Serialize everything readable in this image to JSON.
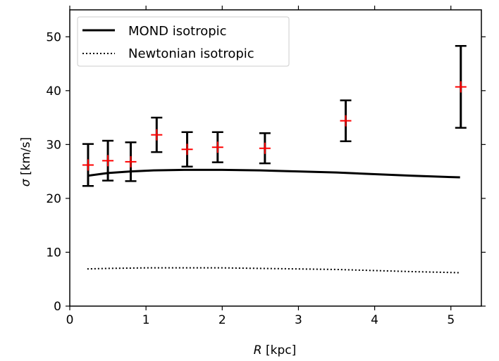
{
  "chart_data": {
    "type": "line",
    "xlabel": {
      "symbol": "R",
      "unit": " [kpc]"
    },
    "ylabel": {
      "symbol": "σ",
      "unit": " [km/s]"
    },
    "xlim": [
      0,
      5.4
    ],
    "ylim": [
      0,
      55
    ],
    "x_ticks": [
      0,
      1,
      2,
      3,
      4,
      5
    ],
    "y_ticks": [
      0,
      10,
      20,
      30,
      40,
      50
    ],
    "grid": false,
    "legend_position": "top-left",
    "series": [
      {
        "name": "MOND isotropic",
        "style": "solid",
        "color": "#000000",
        "x": [
          0.23,
          0.5,
          0.8,
          1.1,
          1.5,
          2.0,
          2.5,
          3.0,
          3.5,
          4.0,
          4.5,
          5.12
        ],
        "y": [
          24.2,
          24.7,
          25.0,
          25.2,
          25.3,
          25.3,
          25.2,
          25.0,
          24.8,
          24.5,
          24.2,
          23.9
        ]
      },
      {
        "name": "Newtonian isotropic",
        "style": "dotted",
        "color": "#000000",
        "x": [
          0.23,
          0.5,
          1.0,
          1.5,
          2.0,
          2.5,
          3.0,
          3.5,
          4.0,
          4.5,
          5.12
        ],
        "y": [
          6.9,
          7.0,
          7.1,
          7.1,
          7.1,
          7.0,
          6.9,
          6.8,
          6.6,
          6.4,
          6.2
        ]
      }
    ],
    "observations": {
      "marker": "+",
      "marker_color": "#ff0000",
      "errorbar_color": "#000000",
      "points": [
        {
          "x": 0.24,
          "y": 26.2,
          "err": 3.9
        },
        {
          "x": 0.5,
          "y": 27.0,
          "err": 3.7
        },
        {
          "x": 0.8,
          "y": 26.8,
          "err": 3.6
        },
        {
          "x": 1.14,
          "y": 31.8,
          "err": 3.2
        },
        {
          "x": 1.54,
          "y": 29.1,
          "err": 3.2
        },
        {
          "x": 1.94,
          "y": 29.5,
          "err": 2.8
        },
        {
          "x": 2.56,
          "y": 29.3,
          "err": 2.8
        },
        {
          "x": 3.62,
          "y": 34.4,
          "err": 3.8
        },
        {
          "x": 5.13,
          "y": 40.7,
          "err": 7.6
        }
      ]
    }
  }
}
